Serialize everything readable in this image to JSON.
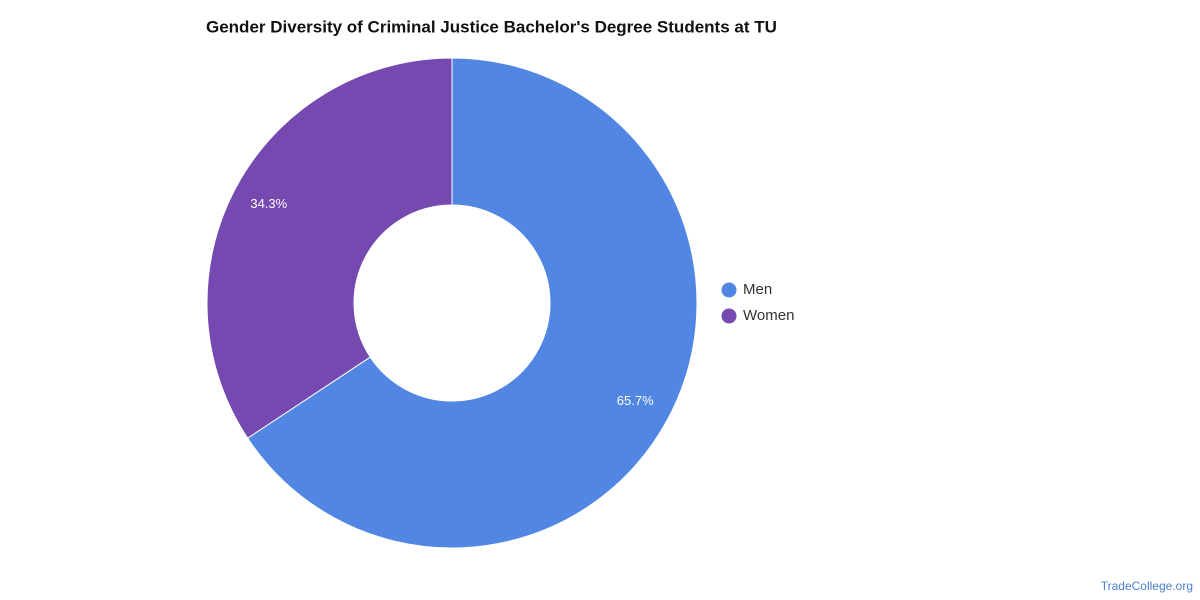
{
  "chart_data": {
    "type": "donut",
    "title": "Gender Diversity of Criminal Justice Bachelor's Degree Students at TU",
    "categories": [
      "Men",
      "Women"
    ],
    "values": [
      65.7,
      34.3
    ],
    "value_labels": [
      "65.7%",
      "34.3%"
    ],
    "colors": [
      "#5286e3",
      "#7549b0"
    ],
    "legend": "right",
    "watermark": "TradeCollege.org"
  }
}
